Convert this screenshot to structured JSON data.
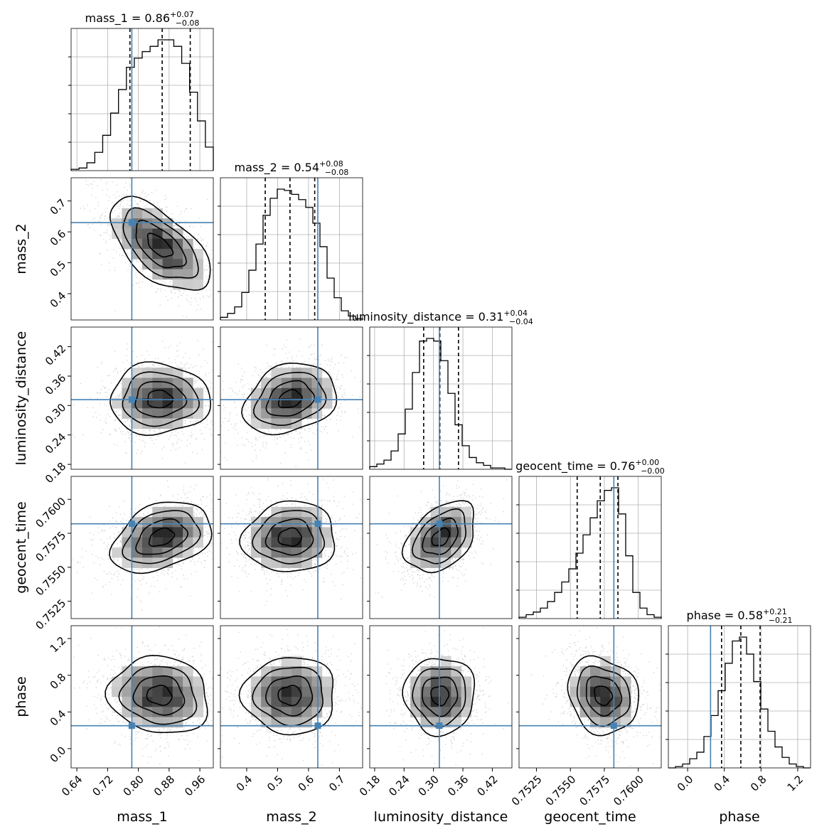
{
  "chart_data": {
    "type": "corner",
    "parameters": [
      "mass_1",
      "mass_2",
      "luminosity_distance",
      "geocent_time",
      "phase"
    ],
    "axis_labels": [
      "mass_1",
      "mass_2",
      "luminosity_distance",
      "geocent_time",
      "phase"
    ],
    "titles": [
      {
        "name": "mass_1",
        "value": "0.86",
        "plus": "+0.07",
        "minus": "−0.08"
      },
      {
        "name": "mass_2",
        "value": "0.54",
        "plus": "+0.08",
        "minus": "−0.08"
      },
      {
        "name": "luminosity_distance",
        "value": "0.31",
        "plus": "+0.04",
        "minus": "−0.04"
      },
      {
        "name": "geocent_time",
        "value": "0.76",
        "plus": "+0.00",
        "minus": "−0.00"
      },
      {
        "name": "phase",
        "value": "0.58",
        "plus": "+0.21",
        "minus": "−0.21"
      }
    ],
    "ranges": [
      [
        0.625,
        0.995
      ],
      [
        0.315,
        0.775
      ],
      [
        0.17,
        0.46
      ],
      [
        0.75122,
        0.76169
      ],
      [
        -0.21,
        1.34
      ]
    ],
    "ticks": [
      {
        "values": [
          0.64,
          0.72,
          0.8,
          0.88,
          0.96
        ],
        "labels": [
          "0.64",
          "0.72",
          "0.80",
          "0.88",
          "0.96"
        ]
      },
      {
        "values": [
          0.4,
          0.5,
          0.6,
          0.7
        ],
        "labels": [
          "0.4",
          "0.5",
          "0.6",
          "0.7"
        ]
      },
      {
        "values": [
          0.18,
          0.24,
          0.3,
          0.36,
          0.42
        ],
        "labels": [
          "0.18",
          "0.24",
          "0.30",
          "0.36",
          "0.42"
        ]
      },
      {
        "values": [
          0.7525,
          0.755,
          0.7575,
          0.76
        ],
        "labels": [
          "0.7525",
          "0.7550",
          "0.7575",
          "0.7600"
        ]
      },
      {
        "values": [
          0.0,
          0.4,
          0.8,
          1.2
        ],
        "labels": [
          "0.0",
          "0.4",
          "0.8",
          "1.2"
        ]
      }
    ],
    "truths": [
      0.783,
      0.63,
      0.312,
      0.7582,
      0.25
    ],
    "quantiles": [
      [
        0.778,
        0.862,
        0.935
      ],
      [
        0.46,
        0.54,
        0.62
      ],
      [
        0.28,
        0.313,
        0.351
      ],
      [
        0.7555,
        0.7572,
        0.7585
      ],
      [
        0.37,
        0.58,
        0.79
      ]
    ],
    "histograms": [
      [
        0.01,
        0.02,
        0.06,
        0.14,
        0.27,
        0.44,
        0.62,
        0.79,
        0.86,
        0.91,
        0.95,
        1.0,
        1.0,
        0.95,
        0.82,
        0.6,
        0.38,
        0.18
      ],
      [
        0.02,
        0.05,
        0.1,
        0.21,
        0.38,
        0.58,
        0.8,
        0.93,
        1.0,
        0.99,
        0.96,
        0.92,
        0.86,
        0.74,
        0.56,
        0.32,
        0.17,
        0.07,
        0.03,
        0.01
      ],
      [
        0.02,
        0.04,
        0.07,
        0.14,
        0.27,
        0.46,
        0.74,
        0.98,
        1.0,
        0.98,
        0.83,
        0.58,
        0.34,
        0.18,
        0.09,
        0.05,
        0.03,
        0.01,
        0.01,
        0.0
      ],
      [
        0.01,
        0.03,
        0.05,
        0.08,
        0.13,
        0.2,
        0.28,
        0.38,
        0.5,
        0.64,
        0.77,
        0.9,
        0.98,
        1.0,
        0.8,
        0.48,
        0.2,
        0.08,
        0.03,
        0.01
      ],
      [
        0.0,
        0.01,
        0.03,
        0.07,
        0.12,
        0.24,
        0.4,
        0.59,
        0.8,
        0.97,
        1.0,
        0.87,
        0.66,
        0.45,
        0.28,
        0.16,
        0.08,
        0.03,
        0.01,
        0.0
      ]
    ],
    "pairs": [
      {
        "row": 1,
        "col": 0,
        "mean": [
          0.855,
          0.555
        ],
        "sd": [
          0.065,
          0.075
        ],
        "rho": -0.6
      },
      {
        "row": 2,
        "col": 0,
        "mean": [
          0.855,
          0.313
        ],
        "sd": [
          0.065,
          0.036
        ],
        "rho": 0.0
      },
      {
        "row": 2,
        "col": 1,
        "mean": [
          0.54,
          0.313
        ],
        "sd": [
          0.075,
          0.036
        ],
        "rho": 0.25
      },
      {
        "row": 3,
        "col": 0,
        "mean": [
          0.86,
          0.7572
        ],
        "sd": [
          0.065,
          0.0013
        ],
        "rho": 0.35
      },
      {
        "row": 3,
        "col": 1,
        "mean": [
          0.54,
          0.7572
        ],
        "sd": [
          0.075,
          0.0013
        ],
        "rho": 0.05
      },
      {
        "row": 3,
        "col": 2,
        "mean": [
          0.315,
          0.7572
        ],
        "sd": [
          0.036,
          0.0013
        ],
        "rho": 0.4
      },
      {
        "row": 4,
        "col": 0,
        "mean": [
          0.855,
          0.58
        ],
        "sd": [
          0.065,
          0.21
        ],
        "rho": -0.1
      },
      {
        "row": 4,
        "col": 1,
        "mean": [
          0.54,
          0.58
        ],
        "sd": [
          0.075,
          0.21
        ],
        "rho": 0.0
      },
      {
        "row": 4,
        "col": 2,
        "mean": [
          0.313,
          0.58
        ],
        "sd": [
          0.036,
          0.21
        ],
        "rho": 0.0
      },
      {
        "row": 4,
        "col": 3,
        "mean": [
          0.7574,
          0.58
        ],
        "sd": [
          0.0013,
          0.21
        ],
        "rho": -0.15
      }
    ],
    "colors": {
      "truth": "#4682b4",
      "density": "#000000",
      "scatter": "#9a9a9a",
      "grid": "#b0b0b0"
    },
    "grid": true
  }
}
